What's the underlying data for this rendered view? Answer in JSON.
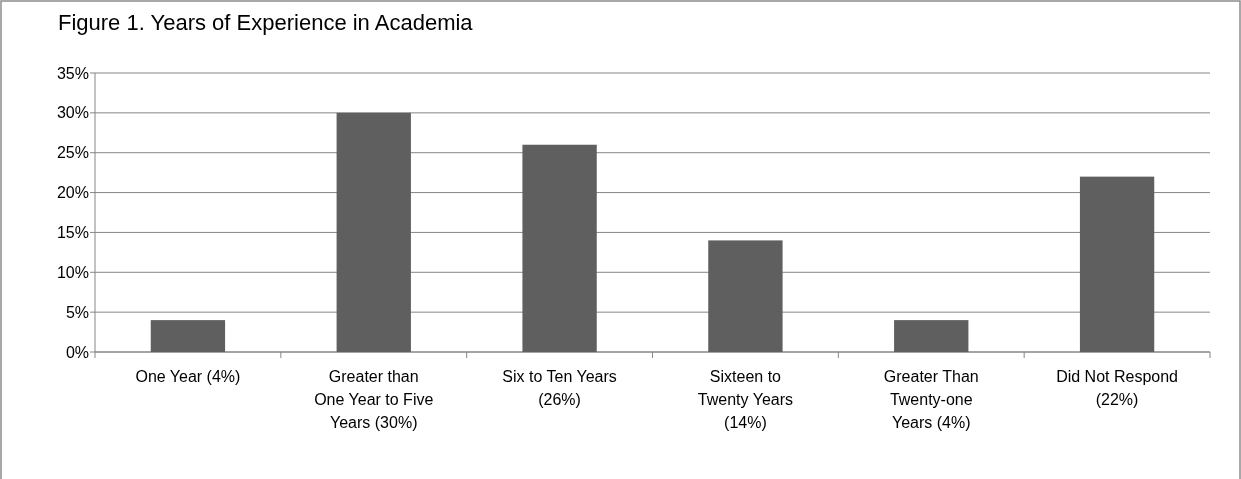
{
  "chart_data": {
    "type": "bar",
    "title": "Figure 1. Years of Experience in Academia",
    "categories": [
      "One Year (4%)",
      "Greater than One Year to Five Years (30%)",
      "Six to Ten Years (26%)",
      "Sixteen to Twenty Years (14%)",
      "Greater Than Twenty-one Years (4%)",
      "Did Not Respond (22%)"
    ],
    "values": [
      4,
      30,
      26,
      14,
      4,
      22
    ],
    "color": "#5f5f5f",
    "ylim": [
      0,
      35
    ],
    "yticks": [
      {
        "value": 0,
        "label": "0%"
      },
      {
        "value": 5,
        "label": "5%"
      },
      {
        "value": 10,
        "label": "10%"
      },
      {
        "value": 15,
        "label": "15%"
      },
      {
        "value": 20,
        "label": "20%"
      },
      {
        "value": 25,
        "label": "25%"
      },
      {
        "value": 30,
        "label": "30%"
      },
      {
        "value": 35,
        "label": "35%"
      }
    ],
    "grid": "y"
  }
}
